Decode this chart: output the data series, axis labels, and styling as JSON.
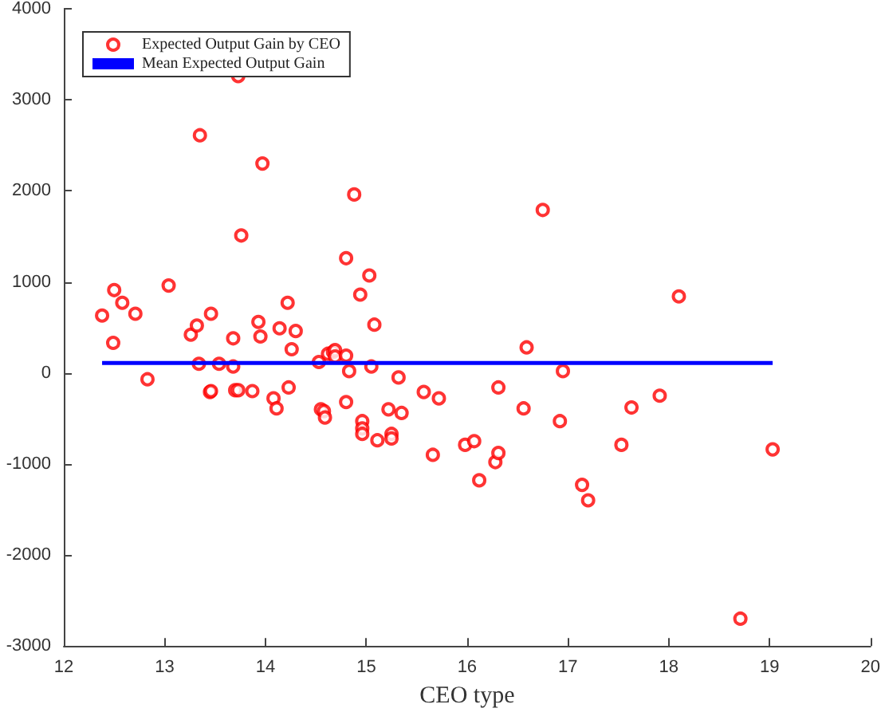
{
  "chart_data": {
    "type": "scatter",
    "xlabel": "CEO type",
    "xlim": [
      12,
      20
    ],
    "xticks": [
      12,
      13,
      14,
      15,
      16,
      17,
      18,
      19,
      20
    ],
    "ylim": [
      -3000,
      4000
    ],
    "yticks": [
      -3000,
      -2000,
      -1000,
      0,
      1000,
      2000,
      3000,
      4000
    ],
    "grid": false,
    "legend": "top left",
    "series": [
      {
        "name": "Expected Output Gain by CEO",
        "marker": "circle",
        "color": "#ff0000",
        "x": [
          12.38,
          12.49,
          12.5,
          12.58,
          12.71,
          12.83,
          13.04,
          13.26,
          13.32,
          13.34,
          13.35,
          13.45,
          13.46,
          13.46,
          13.54,
          13.68,
          13.68,
          13.7,
          13.73,
          13.73,
          13.76,
          13.87,
          13.93,
          13.95,
          13.97,
          14.08,
          14.11,
          14.14,
          14.22,
          14.23,
          14.3,
          14.26,
          14.53,
          14.55,
          14.58,
          14.59,
          14.62,
          14.67,
          14.69,
          14.69,
          14.8,
          14.8,
          14.83,
          14.8,
          14.88,
          14.96,
          14.96,
          14.96,
          14.94,
          15.03,
          15.05,
          15.08,
          15.11,
          15.22,
          15.25,
          15.25,
          15.32,
          15.35,
          15.57,
          15.66,
          15.72,
          15.98,
          16.07,
          16.12,
          16.28,
          16.31,
          16.31,
          16.56,
          16.59,
          16.75,
          16.92,
          16.95,
          17.14,
          17.2,
          17.53,
          17.63,
          17.91,
          18.1,
          18.71,
          19.03
        ],
        "values": [
          630,
          330,
          910,
          770,
          650,
          -70,
          960,
          420,
          520,
          100,
          2610,
          -210,
          -200,
          650,
          100,
          380,
          70,
          -190,
          -190,
          3260,
          1510,
          -200,
          560,
          400,
          2300,
          -280,
          -390,
          490,
          770,
          -160,
          460,
          260,
          120,
          -400,
          -420,
          -490,
          210,
          230,
          250,
          180,
          190,
          -320,
          20,
          1260,
          1960,
          -530,
          -610,
          -670,
          860,
          1070,
          70,
          530,
          -740,
          -400,
          -670,
          -720,
          -50,
          -440,
          -210,
          -900,
          -280,
          -790,
          -750,
          -1180,
          -980,
          -880,
          -160,
          -390,
          280,
          1790,
          -530,
          20,
          -1230,
          -1400,
          -790,
          -380,
          -250,
          840,
          -2700,
          -840
        ]
      },
      {
        "name": "Mean Expected Output Gain",
        "type": "line",
        "marker": "none",
        "line_style": "solid",
        "color": "#0000ff",
        "x": [
          12.38,
          19.03
        ],
        "values": [
          110,
          110
        ]
      }
    ]
  }
}
